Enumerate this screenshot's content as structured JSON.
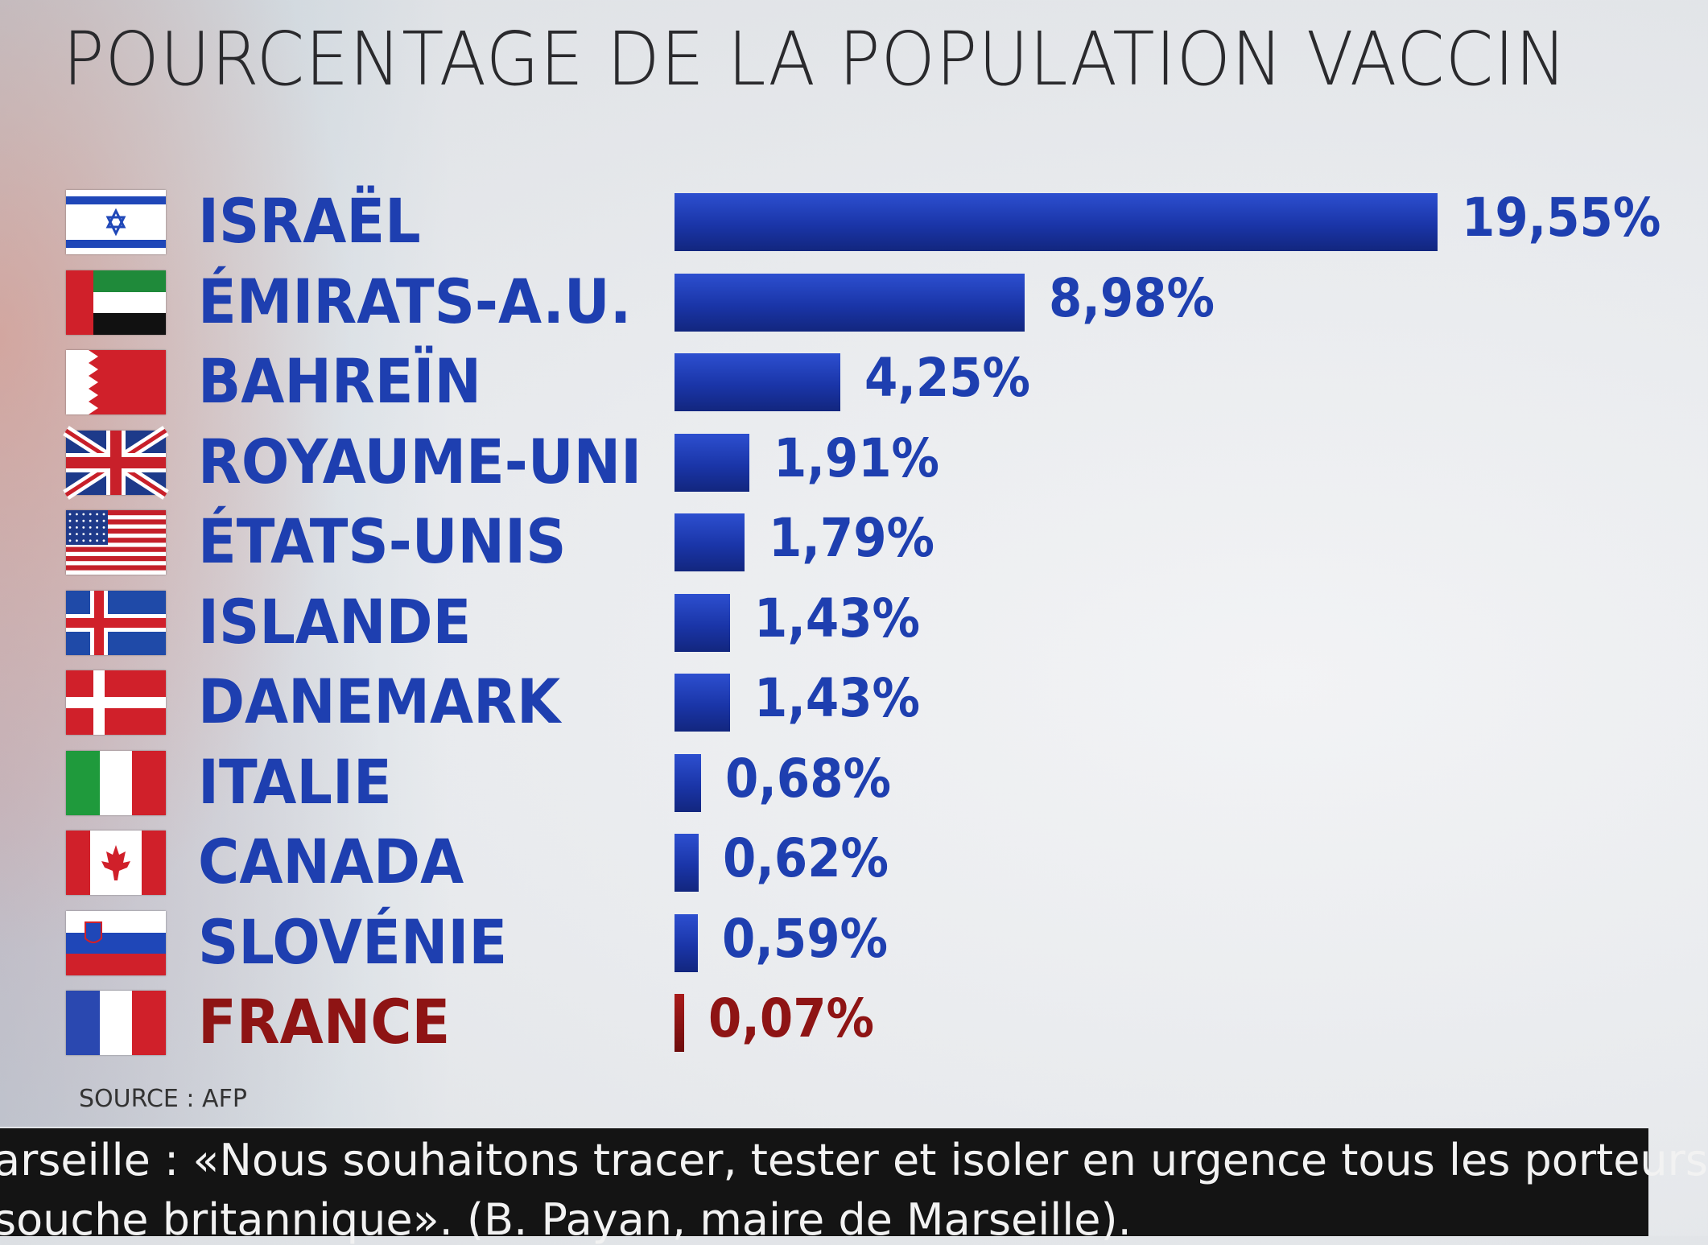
{
  "title": "POURCENTAGE DE LA POPULATION VACCIN",
  "source": "SOURCE : AFP",
  "ticker": {
    "line1": "arseille : «Nous souhaitons tracer, tester et isoler en urgence tous les porteurs",
    "line2": "souche britannique».  (B. Payan, maire de Marseille)."
  },
  "colors": {
    "bar": "#1f3cb5",
    "highlight": "#8e1414",
    "text": "#1e3fb0"
  },
  "chart_data": {
    "type": "bar",
    "orientation": "horizontal",
    "title": "POURCENTAGE DE LA POPULATION VACCIN",
    "xlabel": "",
    "ylabel": "",
    "grid": false,
    "legend": "none",
    "xlim": [
      0,
      19.55
    ],
    "categories": [
      "ISRAËL",
      "ÉMIRATS-A.U.",
      "BAHREÏN",
      "ROYAUME-UNI",
      "ÉTATS-UNIS",
      "ISLANDE",
      "DANEMARK",
      "ITALIE",
      "CANADA",
      "SLOVÉNIE",
      "FRANCE"
    ],
    "values": [
      19.55,
      8.98,
      4.25,
      1.91,
      1.79,
      1.43,
      1.43,
      0.68,
      0.62,
      0.59,
      0.07
    ],
    "labels": [
      "19,55%",
      "8,98%",
      "4,25%",
      "1,91%",
      "1,79%",
      "1,43%",
      "1,43%",
      "0,68%",
      "0,62%",
      "0,59%",
      "0,07%"
    ],
    "highlight": "FRANCE",
    "flags": [
      "israel-flag",
      "uae-flag",
      "bahrain-flag",
      "uk-flag",
      "usa-flag",
      "iceland-flag",
      "denmark-flag",
      "italy-flag",
      "canada-flag",
      "slovenia-flag",
      "france-flag"
    ]
  }
}
